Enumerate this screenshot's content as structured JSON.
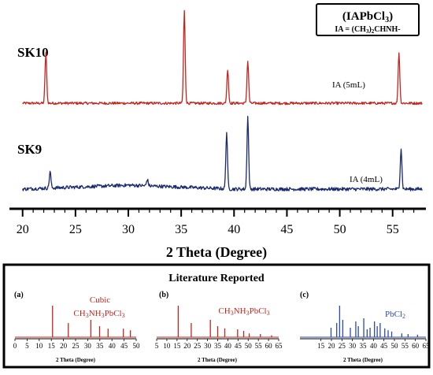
{
  "legend_box": {
    "line1": "(IAPbCl",
    "line1_sub": "3",
    "line1_end": ")",
    "line2": "IA = (CH",
    "line2_sub": "3",
    "line2_end": ")",
    "line2_sub2": "2",
    "line2_tail": "CHNH-"
  },
  "chart_data": [
    {
      "type": "line",
      "title": "",
      "xlabel": "2 Theta (Degree)",
      "ylabel": "",
      "xlim": [
        19.5,
        58
      ],
      "x_ticks": [
        20,
        25,
        30,
        35,
        40,
        45,
        50,
        55
      ],
      "grid": false,
      "series": [
        {
          "name": "SK10",
          "annotation": "IA (5mL)",
          "color": "#c8241e",
          "peaks": [
            {
              "x": 22.2,
              "height": 0.55
            },
            {
              "x": 35.3,
              "height": 1.0
            },
            {
              "x": 39.4,
              "height": 0.37
            },
            {
              "x": 41.3,
              "height": 0.46
            },
            {
              "x": 55.6,
              "height": 0.55
            }
          ]
        },
        {
          "name": "SK9",
          "annotation": "IA (4mL)",
          "color": "#1a2a6e",
          "peaks": [
            {
              "x": 22.6,
              "height": 0.18
            },
            {
              "x": 31.8,
              "height": 0.07
            },
            {
              "x": 39.3,
              "height": 0.62
            },
            {
              "x": 41.3,
              "height": 0.8
            },
            {
              "x": 55.8,
              "height": 0.45
            }
          ]
        }
      ]
    },
    {
      "type": "bar",
      "title": "Literature Reported",
      "panels": [
        {
          "label": "(a)",
          "compound_line1": "Cubic",
          "compound_main": "CH",
          "compound_sub1": "3",
          "compound_mid": "NH",
          "compound_sub2": "3",
          "compound_end": "PbCl",
          "compound_sub3": "3",
          "color": "#c8241e",
          "xlabel": "2 Theta (Degree)",
          "xlim": [
            0,
            50
          ],
          "x_ticks": [
            0,
            5,
            10,
            15,
            20,
            25,
            30,
            35,
            40,
            45,
            50
          ],
          "peaks": [
            {
              "x": 15.5,
              "height": 1.0
            },
            {
              "x": 22.0,
              "height": 0.45
            },
            {
              "x": 31.3,
              "height": 0.55
            },
            {
              "x": 34.9,
              "height": 0.35
            },
            {
              "x": 38.4,
              "height": 0.27
            },
            {
              "x": 44.7,
              "height": 0.27
            },
            {
              "x": 47.6,
              "height": 0.22
            }
          ]
        },
        {
          "label": "(b)",
          "compound_main": "CH",
          "compound_sub1": "3",
          "compound_mid": "NH",
          "compound_sub2": "3",
          "compound_end": "PbCl",
          "compound_sub3": "3",
          "color": "#c8241e",
          "xlabel": "2 Theta (Degree)",
          "xlim": [
            5,
            65
          ],
          "x_ticks": [
            5,
            10,
            15,
            20,
            25,
            30,
            35,
            40,
            45,
            50,
            55,
            60,
            65
          ],
          "peaks": [
            {
              "x": 15.6,
              "height": 1.0
            },
            {
              "x": 22.0,
              "height": 0.45
            },
            {
              "x": 31.4,
              "height": 0.55
            },
            {
              "x": 35.0,
              "height": 0.35
            },
            {
              "x": 38.5,
              "height": 0.28
            },
            {
              "x": 44.8,
              "height": 0.25
            },
            {
              "x": 47.8,
              "height": 0.2
            },
            {
              "x": 50.5,
              "height": 0.12
            },
            {
              "x": 56.0,
              "height": 0.1
            },
            {
              "x": 61.5,
              "height": 0.06
            }
          ]
        },
        {
          "label": "(c)",
          "compound_main": "PbCl",
          "compound_sub3": "2",
          "color": "#2c4aa8",
          "xlabel": "2 Theta (Degree)",
          "xlim": [
            5,
            65
          ],
          "x_ticks": [
            15,
            20,
            25,
            30,
            35,
            40,
            45,
            50,
            55,
            60,
            65
          ],
          "peaks": [
            {
              "x": 19.8,
              "height": 0.3
            },
            {
              "x": 22.5,
              "height": 0.45
            },
            {
              "x": 23.9,
              "height": 1.0
            },
            {
              "x": 25.4,
              "height": 0.55
            },
            {
              "x": 29.0,
              "height": 0.3
            },
            {
              "x": 31.6,
              "height": 0.5
            },
            {
              "x": 32.8,
              "height": 0.35
            },
            {
              "x": 35.4,
              "height": 0.6
            },
            {
              "x": 37.0,
              "height": 0.25
            },
            {
              "x": 38.4,
              "height": 0.3
            },
            {
              "x": 40.5,
              "height": 0.5
            },
            {
              "x": 41.8,
              "height": 0.35
            },
            {
              "x": 43.2,
              "height": 0.45
            },
            {
              "x": 45.4,
              "height": 0.28
            },
            {
              "x": 47.0,
              "height": 0.22
            },
            {
              "x": 48.7,
              "height": 0.18
            },
            {
              "x": 53.5,
              "height": 0.12
            },
            {
              "x": 56.5,
              "height": 0.1
            },
            {
              "x": 61.0,
              "height": 0.08
            }
          ]
        }
      ]
    }
  ]
}
